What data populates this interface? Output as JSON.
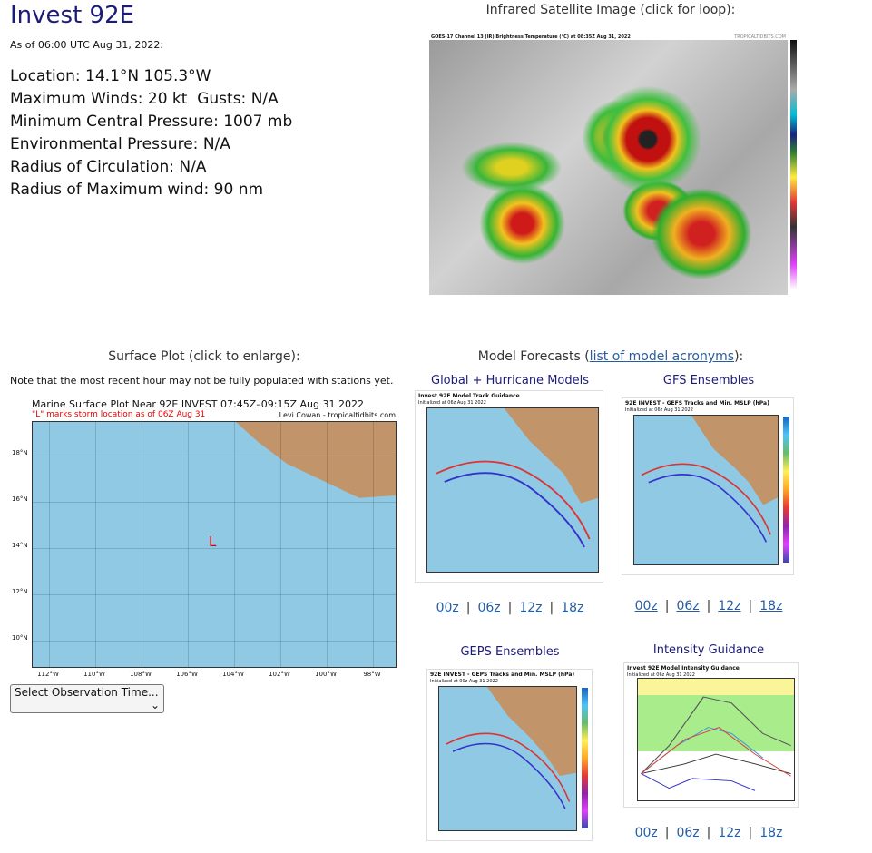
{
  "header": {
    "title": "Invest 92E",
    "as_of": "As of 06:00 UTC Aug 31, 2022:"
  },
  "info": [
    "Location: 14.1°N 105.3°W",
    "Maximum Winds: 20 kt  Gusts: N/A",
    "Minimum Central Pressure: 1007 mb",
    "Environmental Pressure: N/A",
    "Radius of Circulation: N/A",
    "Radius of Maximum wind: 90 nm"
  ],
  "satellite": {
    "heading": "Infrared Satellite Image (click for loop):",
    "image_title": "GOES-17 Channel 13 (IR) Brightness Temperature (°C) at 08:35Z Aug 31, 2022",
    "credit": "TROPICALTIDBITS.COM"
  },
  "surface": {
    "heading": "Surface Plot (click to enlarge):",
    "note": "Note that the most recent hour may not be fully populated with stations yet.",
    "plot_title": "Marine Surface Plot Near 92E INVEST 07:45Z–09:15Z Aug 31 2022",
    "plot_subtitle": "\"L\" marks storm location as of 06Z Aug 31",
    "credit": "Levi Cowan - tropicaltidbits.com",
    "lon_labels": [
      "112°W",
      "110°W",
      "108°W",
      "106°W",
      "104°W",
      "102°W",
      "100°W",
      "98°W"
    ],
    "lat_labels": [
      "18°N",
      "16°N",
      "14°N",
      "12°N",
      "10°N"
    ],
    "storm_marker": "L",
    "select": "Select Observation Time..."
  },
  "models": {
    "heading_prefix": "Model Forecasts (",
    "heading_link": "list of model acronyms",
    "heading_suffix": "):",
    "run_separator": "|",
    "panels": [
      {
        "caption": "Global + Hurricane Models",
        "image_title": "Invest 92E Model Track Guidance",
        "image_subtitle": "Initialized at 06z Aug 31 2022",
        "runs": [
          "00z",
          "06z",
          "12z",
          "18z"
        ]
      },
      {
        "caption": "GFS Ensembles",
        "image_title": "92E INVEST - GEFS Tracks and Min. MSLP (hPa)",
        "image_subtitle": "Initialized at 06z Aug 31 2022",
        "runs": [
          "00z",
          "06z",
          "12z",
          "18z"
        ]
      },
      {
        "caption": "GEPS Ensembles",
        "image_title": "92E INVEST - GEPS Tracks and Min. MSLP (hPa)",
        "image_subtitle": "Initialized at 00z Aug 31 2022"
      },
      {
        "caption": "Intensity Guidance",
        "image_title": "Invest 92E Model Intensity Guidance",
        "image_subtitle": "Initialized at 06z Aug 31 2022",
        "runs": [
          "00z",
          "06z",
          "12z",
          "18z"
        ]
      }
    ]
  }
}
